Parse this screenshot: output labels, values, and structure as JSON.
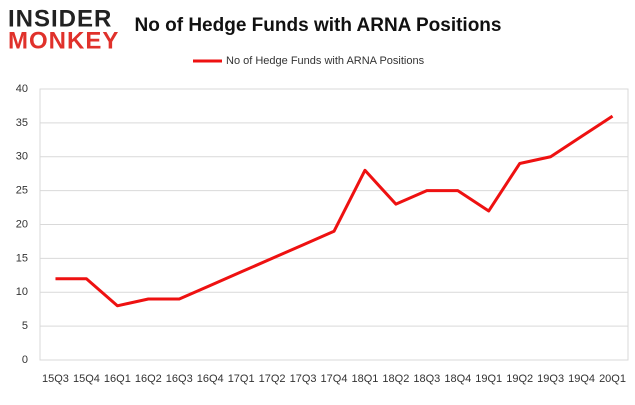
{
  "logo": {
    "top": "INSIDER",
    "bottom": "MONKEY"
  },
  "chart_data": {
    "type": "line",
    "title": "No of Hedge Funds with ARNA Positions",
    "categories": [
      "15Q3",
      "15Q4",
      "16Q1",
      "16Q2",
      "16Q3",
      "16Q4",
      "17Q1",
      "17Q2",
      "17Q3",
      "17Q4",
      "18Q1",
      "18Q2",
      "18Q3",
      "18Q4",
      "19Q1",
      "19Q2",
      "19Q3",
      "19Q4",
      "20Q1"
    ],
    "series": [
      {
        "name": "No of Hedge Funds with ARNA Positions",
        "color": "#ee1111",
        "values": [
          12,
          12,
          8,
          9,
          9,
          11,
          13,
          15,
          17,
          19,
          28,
          23,
          25,
          25,
          22,
          29,
          30,
          33,
          36
        ]
      }
    ],
    "ylim": [
      0,
      40
    ],
    "yticks": [
      0,
      5,
      10,
      15,
      20,
      25,
      30,
      35,
      40
    ],
    "grid": true,
    "legend": "top"
  }
}
